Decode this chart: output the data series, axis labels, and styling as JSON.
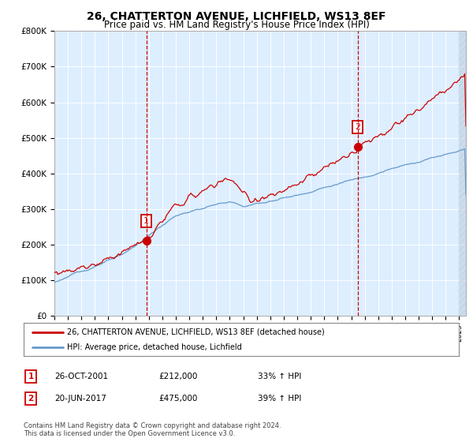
{
  "title": "26, CHATTERTON AVENUE, LICHFIELD, WS13 8EF",
  "subtitle": "Price paid vs. HM Land Registry's House Price Index (HPI)",
  "ylim": [
    0,
    800000
  ],
  "xlim_start": 1995.0,
  "xlim_end": 2025.5,
  "sale1_x": 2001.82,
  "sale1_y": 212000,
  "sale1_label": "1",
  "sale2_x": 2017.47,
  "sale2_y": 475000,
  "sale2_label": "2",
  "legend_line1": "26, CHATTERTON AVENUE, LICHFIELD, WS13 8EF (detached house)",
  "legend_line2": "HPI: Average price, detached house, Lichfield",
  "table_row1": [
    "1",
    "26-OCT-2001",
    "£212,000",
    "33% ↑ HPI"
  ],
  "table_row2": [
    "2",
    "20-JUN-2017",
    "£475,000",
    "39% ↑ HPI"
  ],
  "footnote": "Contains HM Land Registry data © Crown copyright and database right 2024.\nThis data is licensed under the Open Government Licence v3.0.",
  "line_color_red": "#cc0000",
  "line_color_blue": "#6699cc",
  "vline_color": "#cc0000",
  "plot_bg": "#ddeeff",
  "hatch_color": "#bbccdd"
}
